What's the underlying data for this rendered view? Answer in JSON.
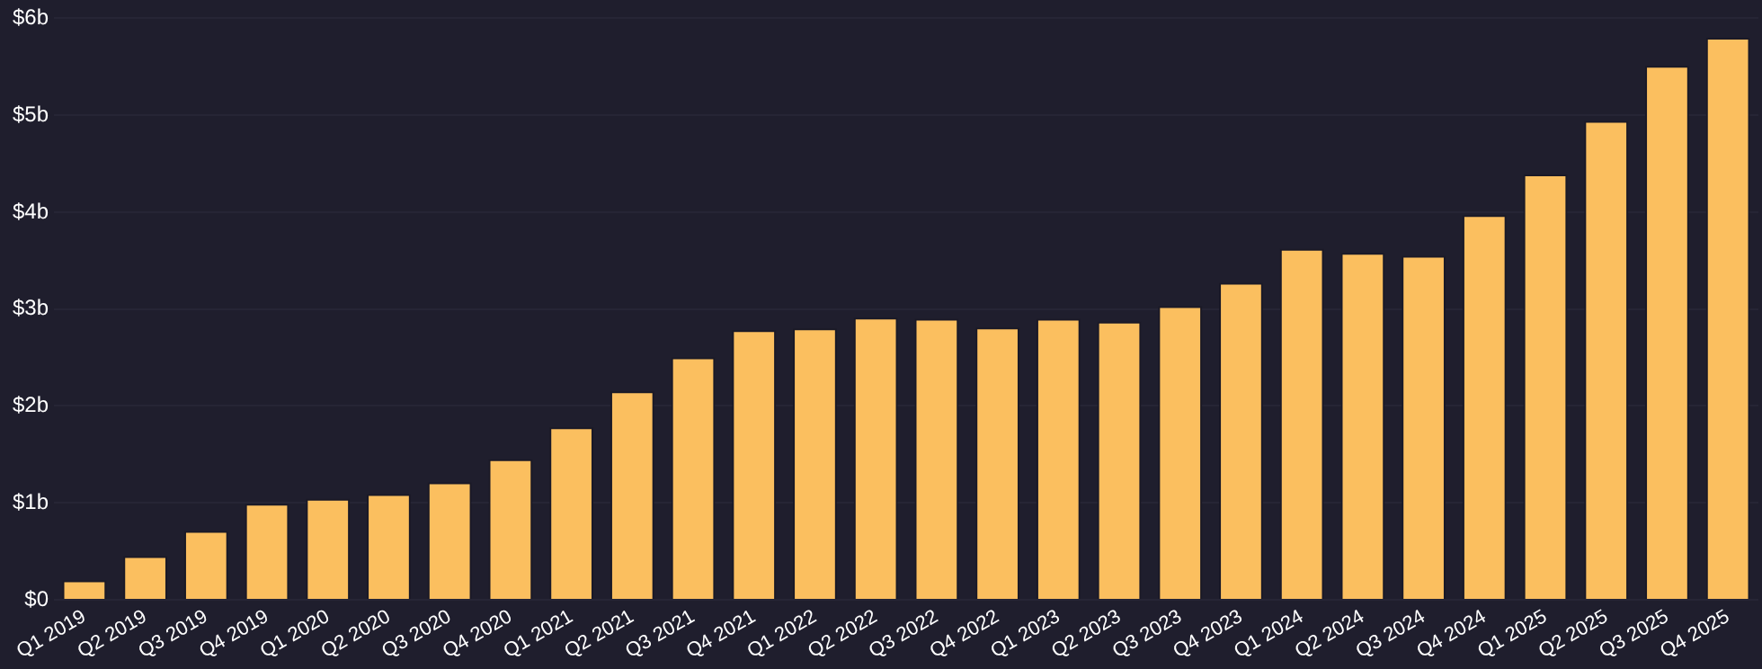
{
  "chart_data": {
    "type": "bar",
    "categories": [
      "Q1 2019",
      "Q2 2019",
      "Q3 2019",
      "Q4 2019",
      "Q1 2020",
      "Q2 2020",
      "Q3 2020",
      "Q4 2020",
      "Q1 2021",
      "Q2 2021",
      "Q3 2021",
      "Q4 2021",
      "Q1 2022",
      "Q2 2022",
      "Q3 2022",
      "Q4 2022",
      "Q1 2023",
      "Q2 2023",
      "Q3 2023",
      "Q4 2023",
      "Q1 2024",
      "Q2 2024",
      "Q3 2024",
      "Q4 2024",
      "Q1 2025",
      "Q2 2025",
      "Q3 2025",
      "Q4 2025"
    ],
    "values": [
      0.2,
      0.45,
      0.71,
      0.99,
      1.04,
      1.09,
      1.21,
      1.45,
      1.78,
      2.15,
      2.5,
      2.78,
      2.8,
      2.91,
      2.9,
      2.81,
      2.9,
      2.87,
      3.03,
      3.27,
      3.62,
      3.58,
      3.55,
      3.97,
      4.39,
      4.94,
      5.51,
      5.8
    ],
    "color": "#fbbf5f",
    "ylim": [
      0,
      6
    ],
    "yticks": [
      {
        "value": 0,
        "label": "$0"
      },
      {
        "value": 1,
        "label": "$1b"
      },
      {
        "value": 2,
        "label": "$2b"
      },
      {
        "value": 3,
        "label": "$3b"
      },
      {
        "value": 4,
        "label": "$4b"
      },
      {
        "value": 5,
        "label": "$5b"
      },
      {
        "value": 6,
        "label": "$6b"
      }
    ],
    "grid": "y",
    "legend": false
  }
}
